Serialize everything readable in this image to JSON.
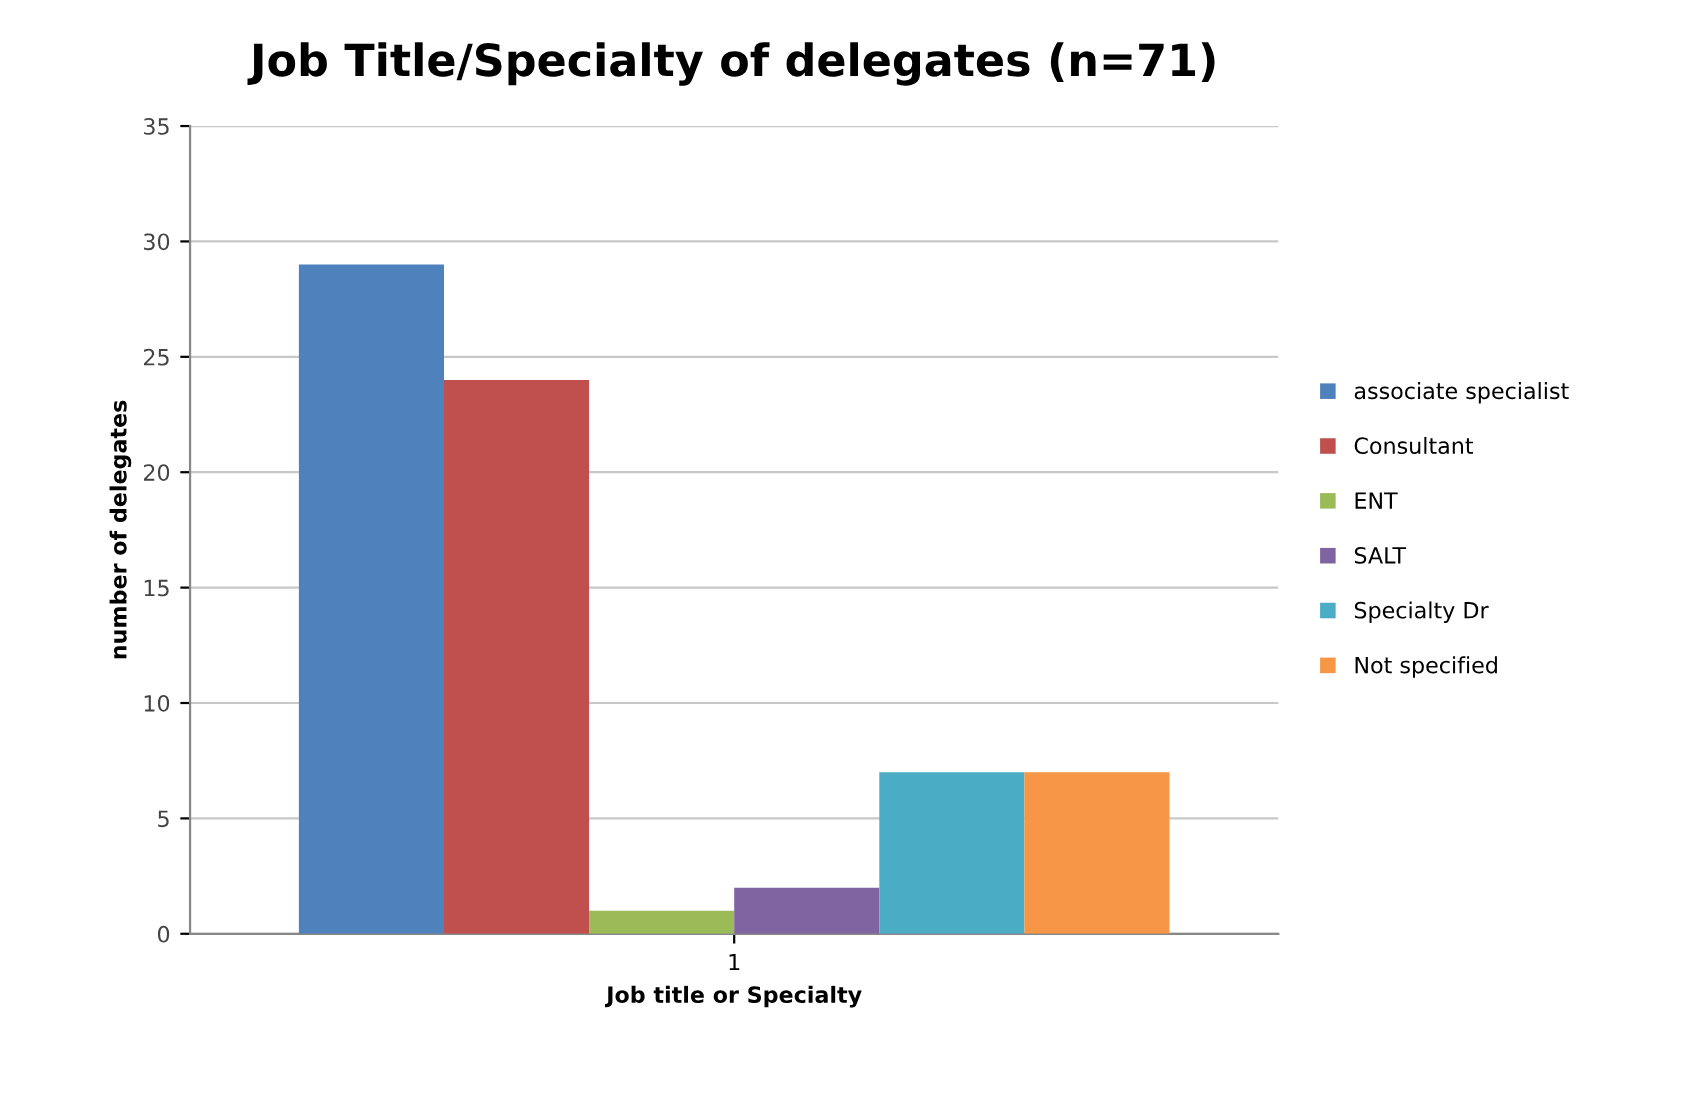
{
  "chart_data": {
    "type": "bar",
    "title": "Job Title/Specialty of delegates (n=71)",
    "xlabel": "Job title or Specialty",
    "ylabel": "number of delegates",
    "categories": [
      "1"
    ],
    "series": [
      {
        "name": "associate specialist",
        "color": "#4f81bd",
        "values": [
          29
        ]
      },
      {
        "name": "Consultant",
        "color": "#c0504d",
        "values": [
          24
        ]
      },
      {
        "name": "ENT",
        "color": "#9bbb59",
        "values": [
          1
        ]
      },
      {
        "name": "SALT",
        "color": "#8064a2",
        "values": [
          2
        ]
      },
      {
        "name": "Specialty Dr",
        "color": "#4bacc6",
        "values": [
          7
        ]
      },
      {
        "name": "Not specified",
        "color": "#f79646",
        "values": [
          7
        ]
      }
    ],
    "ylim": [
      0,
      35
    ],
    "yticks": [
      0,
      5,
      10,
      15,
      20,
      25,
      30,
      35
    ],
    "grid": "y",
    "legend": "right"
  }
}
